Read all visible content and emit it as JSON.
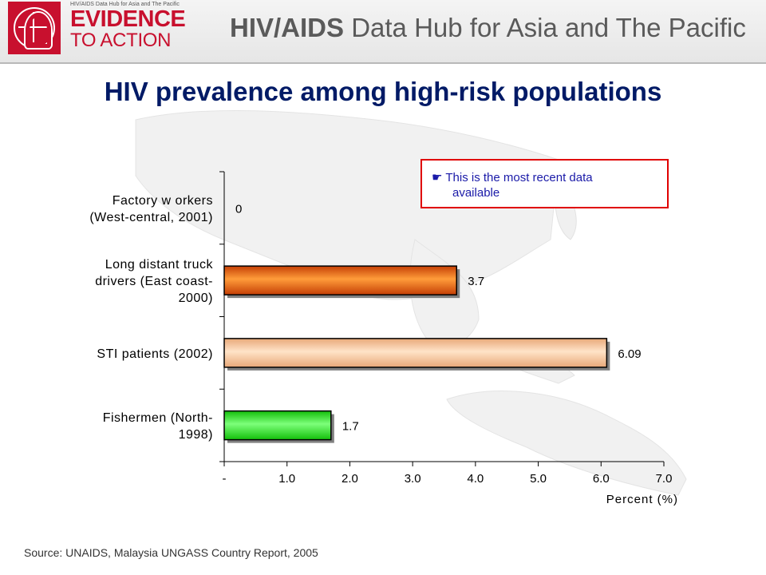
{
  "header": {
    "logo_tagline": "HIV/AIDS Data Hub for Asia and The Pacific",
    "logo_line1": "EVIDENCE",
    "logo_line2": "TO ACTION",
    "title_bold": "HIV/AIDS",
    "title_rest": " Data Hub for Asia and The Pacific"
  },
  "slide_title": "HIV prevalence among high-risk populations",
  "note": {
    "icon": "pointing-hand-icon",
    "line1": "This is the most recent data",
    "line2": "available"
  },
  "source": "Source: UNAIDS, Malaysia UNGASS Country Report, 2005",
  "colors": {
    "title": "#001a66",
    "accent_red": "#c8102e",
    "note_border": "#e00000",
    "note_text": "#1a1aa8"
  },
  "chart_data": {
    "type": "bar",
    "orientation": "horizontal",
    "title": "",
    "xlabel": "Percent (%)",
    "ylabel": "",
    "xlim": [
      0,
      7
    ],
    "xticks": [
      0,
      1,
      2,
      3,
      4,
      5,
      6,
      7
    ],
    "xtick_labels": [
      "-",
      "1.0",
      "2.0",
      "3.0",
      "4.0",
      "5.0",
      "6.0",
      "7.0"
    ],
    "grid": false,
    "legend": "none",
    "categories": [
      [
        "Factory w orkers",
        "(West-central, 2001)"
      ],
      [
        "Long distant truck",
        "drivers (East coast-",
        "2000)"
      ],
      [
        "STI patients (2002)"
      ],
      [
        "Fishermen (North-",
        "1998)"
      ]
    ],
    "values": [
      0,
      3.7,
      6.09,
      1.7
    ],
    "value_labels": [
      "0",
      "3.7",
      "6.09",
      "1.7"
    ],
    "bar_colors": [
      [
        "#cccccc",
        "#eeeeee"
      ],
      [
        "#c53f05",
        "#ff9c3a"
      ],
      [
        "#e8a878",
        "#ffe3c8"
      ],
      [
        "#13bf0a",
        "#7dff7a"
      ]
    ]
  }
}
